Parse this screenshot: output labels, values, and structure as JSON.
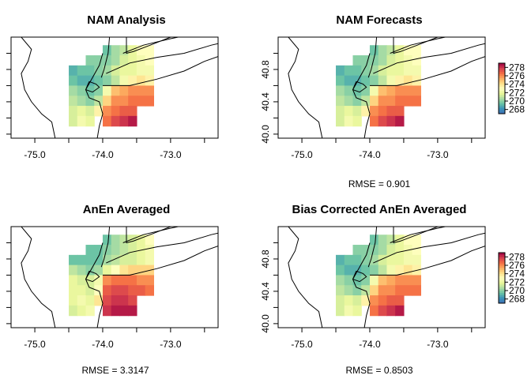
{
  "chart_data": {
    "type": "heatmap",
    "colors": {
      "low": "#3f6db3",
      "mid": "#fdfdc0",
      "high": "#9b0039",
      "stops": [
        "#3f6db3",
        "#3a91bb",
        "#66c2a5",
        "#abdda4",
        "#e6f598",
        "#fefebd",
        "#fee08b",
        "#fdae61",
        "#f46d43",
        "#d53e4f",
        "#9e0142"
      ]
    },
    "value_range": [
      267,
      279
    ],
    "xlim": [
      -75.35,
      -72.3
    ],
    "ylim": [
      39.95,
      41.2
    ],
    "x_ticks": [
      -75.0,
      -74.5,
      -74.0,
      -73.5,
      -73.0,
      -72.5
    ],
    "x_tick_labels": [
      "-75.0",
      "",
      "-74.0",
      "",
      "-73.0",
      ""
    ],
    "y_ticks": [
      40.0,
      40.2,
      40.4,
      40.6,
      40.8,
      41.0
    ],
    "y_tick_labels": [
      "40.0",
      "",
      "40.4",
      "",
      "40.8",
      ""
    ],
    "legend": {
      "ticks": [
        268,
        270,
        272,
        274,
        276,
        278
      ],
      "labels": [
        "268",
        "270",
        "272",
        "274",
        "276",
        "278"
      ]
    },
    "grid": {
      "lon0": -74.5,
      "lat0": 40.1,
      "dlon": 0.125,
      "dlat": 0.125,
      "ncol": 10,
      "nrow": 8,
      "mask": [
        "....######",
        "..########",
        "##########",
        "##########",
        "##########",
        "##########",
        "########..",
        "###.####.."
      ]
    },
    "panels": [
      {
        "title": "NAM Analysis",
        "show_y_labels": false,
        "show_legend": false,
        "rmse_label": "",
        "values": [
          [
            269.5,
            269.5,
            269.5,
            269.5,
            269.5,
            270.5,
            271.0,
            272.0,
            273.0,
            273.0
          ],
          [
            269.0,
            269.5,
            270.0,
            270.0,
            270.0,
            270.5,
            271.5,
            272.0,
            272.5,
            273.0
          ],
          [
            269.0,
            269.5,
            269.5,
            270.0,
            270.5,
            271.5,
            272.0,
            272.0,
            272.5,
            272.5
          ],
          [
            269.5,
            269.0,
            269.0,
            269.5,
            270.0,
            271.0,
            272.5,
            273.5,
            274.0,
            273.5
          ],
          [
            270.5,
            270.0,
            269.5,
            270.0,
            272.5,
            275.0,
            275.5,
            276.0,
            276.0,
            276.0
          ],
          [
            271.0,
            270.5,
            270.0,
            271.0,
            274.5,
            276.0,
            276.0,
            276.5,
            276.5,
            276.5
          ],
          [
            271.5,
            272.0,
            271.5,
            273.5,
            276.0,
            276.5,
            277.0,
            277.0,
            276.5,
            276.5
          ],
          [
            271.5,
            272.5,
            272.0,
            274.0,
            276.5,
            277.5,
            278.0,
            278.5,
            278.0,
            277.0
          ]
        ]
      },
      {
        "title": "NAM Forecasts",
        "show_y_labels": true,
        "show_legend": true,
        "rmse_label": "RMSE = 0.901",
        "values": [
          [
            269.5,
            269.5,
            269.5,
            269.0,
            269.5,
            270.5,
            271.0,
            272.0,
            273.0,
            273.0
          ],
          [
            269.0,
            269.5,
            270.0,
            270.0,
            270.0,
            270.5,
            271.5,
            272.0,
            272.5,
            273.0
          ],
          [
            269.0,
            269.5,
            269.5,
            270.0,
            270.5,
            271.5,
            272.0,
            272.0,
            272.5,
            272.5
          ],
          [
            269.5,
            269.0,
            269.0,
            269.5,
            270.0,
            271.0,
            272.5,
            273.5,
            274.0,
            273.5
          ],
          [
            270.5,
            270.0,
            269.5,
            270.0,
            272.5,
            275.0,
            275.5,
            276.0,
            276.0,
            276.0
          ],
          [
            271.0,
            270.5,
            270.0,
            271.0,
            274.5,
            276.0,
            276.0,
            276.5,
            276.5,
            276.5
          ],
          [
            271.5,
            272.0,
            271.5,
            273.5,
            276.0,
            276.5,
            277.0,
            277.0,
            276.5,
            276.5
          ],
          [
            271.5,
            272.5,
            272.0,
            274.0,
            276.5,
            277.5,
            278.0,
            278.5,
            278.0,
            277.0
          ]
        ]
      },
      {
        "title": "AnEn Averaged",
        "show_y_labels": false,
        "show_legend": false,
        "rmse_label": "RMSE = 3.3147",
        "values": [
          [
            269.0,
            269.5,
            269.0,
            269.5,
            269.5,
            270.5,
            271.0,
            271.5,
            272.0,
            273.0
          ],
          [
            269.0,
            269.5,
            269.5,
            269.5,
            270.0,
            270.5,
            271.0,
            271.5,
            272.0,
            272.5
          ],
          [
            269.5,
            269.5,
            269.5,
            269.5,
            270.5,
            271.0,
            271.5,
            271.5,
            272.0,
            272.5
          ],
          [
            271.0,
            270.5,
            270.0,
            270.5,
            272.0,
            273.0,
            274.0,
            274.5,
            274.5,
            274.5
          ],
          [
            272.0,
            271.5,
            271.5,
            272.5,
            276.0,
            276.5,
            276.5,
            276.5,
            276.0,
            276.0
          ],
          [
            272.0,
            272.0,
            271.5,
            273.0,
            277.0,
            277.5,
            277.5,
            277.0,
            277.0,
            276.5
          ],
          [
            272.0,
            272.5,
            272.0,
            274.0,
            277.5,
            278.0,
            278.0,
            277.5,
            277.0,
            276.5
          ],
          [
            271.5,
            272.0,
            272.5,
            274.5,
            278.0,
            278.5,
            278.5,
            278.5,
            278.0,
            277.5
          ]
        ]
      },
      {
        "title": "Bias Corrected AnEn Averaged",
        "show_y_labels": true,
        "show_legend": true,
        "rmse_label": "RMSE = 0.8503",
        "values": [
          [
            269.5,
            269.5,
            269.5,
            269.5,
            269.5,
            270.5,
            271.0,
            272.0,
            273.0,
            273.0
          ],
          [
            269.0,
            269.5,
            270.0,
            270.0,
            270.0,
            270.5,
            271.5,
            272.0,
            272.5,
            273.0
          ],
          [
            269.0,
            269.5,
            269.5,
            270.0,
            270.5,
            271.5,
            272.0,
            272.0,
            272.5,
            272.5
          ],
          [
            269.5,
            269.0,
            269.0,
            269.5,
            270.0,
            271.0,
            272.5,
            273.5,
            274.0,
            273.5
          ],
          [
            270.5,
            270.0,
            269.5,
            270.0,
            272.5,
            275.0,
            275.5,
            276.0,
            276.0,
            276.0
          ],
          [
            271.0,
            270.5,
            270.0,
            271.0,
            274.5,
            276.0,
            276.0,
            276.5,
            276.5,
            276.5
          ],
          [
            271.5,
            272.0,
            271.5,
            273.5,
            276.0,
            276.5,
            277.0,
            277.0,
            276.5,
            276.5
          ],
          [
            271.5,
            272.5,
            272.0,
            274.0,
            276.5,
            277.5,
            278.0,
            278.5,
            278.0,
            277.0
          ]
        ]
      }
    ],
    "coastlines": {
      "pa_nj_border": [
        [
          -75.2,
          41.2
        ],
        [
          -75.05,
          41.05
        ],
        [
          -75.1,
          40.9
        ],
        [
          -75.2,
          40.75
        ],
        [
          -75.15,
          40.55
        ],
        [
          -75.05,
          40.4
        ],
        [
          -74.9,
          40.25
        ],
        [
          -74.75,
          40.15
        ],
        [
          -74.7,
          39.95
        ]
      ],
      "nj_coast": [
        [
          -74.0,
          41.0
        ],
        [
          -74.05,
          40.85
        ],
        [
          -74.15,
          40.7
        ],
        [
          -74.25,
          40.55
        ],
        [
          -74.2,
          40.45
        ],
        [
          -74.05,
          40.4
        ],
        [
          -74.0,
          40.25
        ],
        [
          -74.05,
          40.1
        ],
        [
          -74.08,
          39.95
        ]
      ],
      "hudson": [
        [
          -73.9,
          41.2
        ],
        [
          -73.92,
          41.0
        ],
        [
          -73.98,
          40.8
        ],
        [
          -74.02,
          40.7
        ]
      ],
      "ny_ct_border": [
        [
          -73.65,
          41.2
        ],
        [
          -73.65,
          41.0
        ],
        [
          -73.55,
          41.02
        ],
        [
          -73.3,
          41.1
        ],
        [
          -73.0,
          41.2
        ]
      ],
      "ct_coast": [
        [
          -73.7,
          41.0
        ],
        [
          -73.4,
          41.1
        ],
        [
          -73.0,
          41.18
        ],
        [
          -72.6,
          41.25
        ]
      ],
      "long_island_north": [
        [
          -73.95,
          40.75
        ],
        [
          -73.6,
          40.88
        ],
        [
          -73.2,
          40.95
        ],
        [
          -72.8,
          41.0
        ],
        [
          -72.4,
          41.1
        ],
        [
          -72.3,
          41.12
        ]
      ],
      "long_island_south": [
        [
          -74.0,
          40.6
        ],
        [
          -73.6,
          40.6
        ],
        [
          -73.2,
          40.68
        ],
        [
          -72.8,
          40.78
        ],
        [
          -72.5,
          40.9
        ],
        [
          -72.3,
          40.96
        ]
      ],
      "staten_island": [
        [
          -74.2,
          40.65
        ],
        [
          -74.1,
          40.62
        ],
        [
          -74.05,
          40.58
        ],
        [
          -74.15,
          40.52
        ],
        [
          -74.25,
          40.55
        ],
        [
          -74.2,
          40.65
        ]
      ],
      "ri_coast": [
        [
          -72.4,
          41.2
        ],
        [
          -72.35,
          41.3
        ]
      ]
    }
  }
}
